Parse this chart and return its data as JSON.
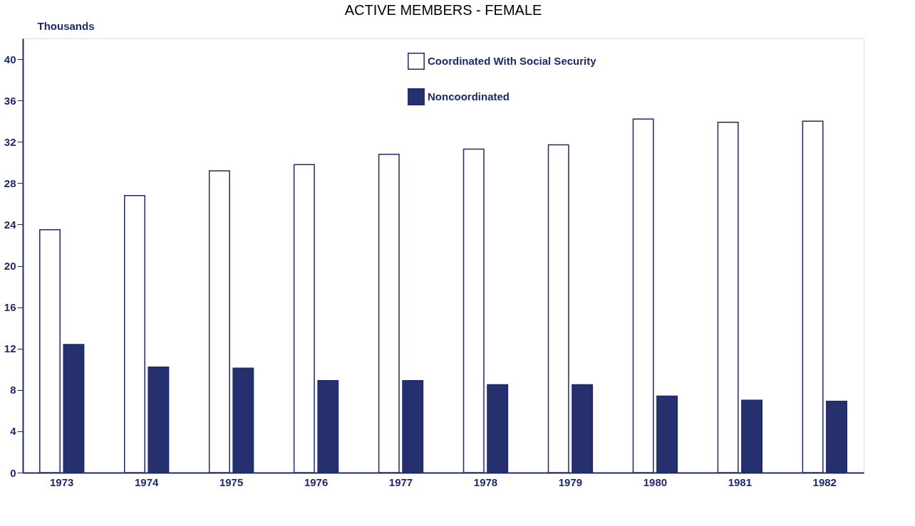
{
  "chart_data": {
    "type": "bar",
    "title": "ACTIVE MEMBERS - FEMALE",
    "ylabel": "Thousands",
    "categories": [
      "1973",
      "1974",
      "1975",
      "1976",
      "1977",
      "1978",
      "1979",
      "1980",
      "1981",
      "1982"
    ],
    "series": [
      {
        "name": "Coordinated With Social Security",
        "color": "#ffffff",
        "values": [
          23.5,
          26.8,
          29.2,
          29.8,
          30.8,
          31.3,
          31.7,
          34.2,
          33.9,
          34.0
        ]
      },
      {
        "name": "Noncoordinated",
        "color": "#26306e",
        "values": [
          12.4,
          10.2,
          10.1,
          8.9,
          8.9,
          8.5,
          8.5,
          7.4,
          7.0,
          6.9
        ]
      }
    ],
    "ylim": [
      0,
      42
    ],
    "yticks": [
      0,
      4,
      8,
      12,
      16,
      20,
      24,
      28,
      32,
      36,
      40
    ],
    "grid": false,
    "legend": "top right"
  }
}
